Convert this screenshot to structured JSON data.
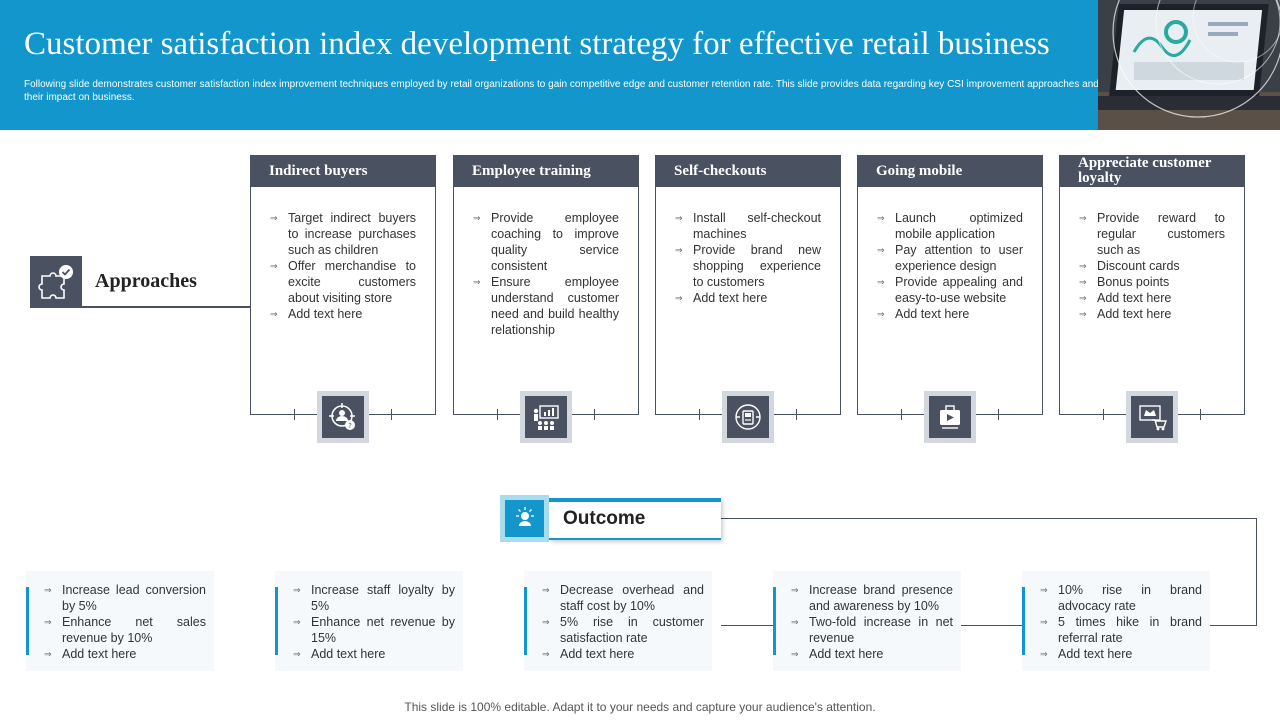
{
  "header": {
    "title": "Customer satisfaction index development strategy for effective retail business",
    "subtitle": "Following slide demonstrates customer satisfaction index improvement techniques employed by retail organizations to gain competitive edge and customer retention rate. This slide provides data regarding key CSI improvement approaches and their impact on business."
  },
  "approaches": {
    "label": "Approaches",
    "icon": "puzzle-check-icon"
  },
  "columns": [
    {
      "title": "Indirect buyers",
      "icon": "target-user-icon",
      "items": [
        "Target indirect buyers to increase purchases such as children",
        "Offer merchandise to excite customers about visiting store",
        "Add text here"
      ]
    },
    {
      "title": "Employee training",
      "icon": "presentation-training-icon",
      "items": [
        "Provide employee coaching to improve quality service consistent",
        "Ensure employee understand customer need and build healthy relationship"
      ]
    },
    {
      "title": "Self-checkouts",
      "icon": "checkout-machine-icon",
      "items": [
        "Install self-checkout machines",
        "Provide brand new shopping experience to customers",
        "Add text here"
      ]
    },
    {
      "title": "Going mobile",
      "icon": "mobile-video-icon",
      "items": [
        "Launch optimized mobile application",
        "Pay attention to user experience design",
        "Provide appealing and easy-to-use website",
        "Add text here"
      ]
    },
    {
      "title": "Appreciate customer loyalty",
      "icon": "crown-cart-icon",
      "items": [
        "Provide reward to regular customers such as",
        "Discount cards",
        "Bonus points",
        "Add text here",
        "Add text here"
      ]
    }
  ],
  "outcome": {
    "label": "Outcome",
    "icon": "bulb-person-icon",
    "cards": [
      [
        "Increase lead conversion by 5%",
        "Enhance net sales revenue  by 10%",
        "Add text here"
      ],
      [
        "Increase staff loyalty by 5%",
        "Enhance net revenue  by 15%",
        "Add text here"
      ],
      [
        "Decrease overhead  and staff cost by 10%",
        "5% rise in customer satisfaction rate",
        "Add text here"
      ],
      [
        "Increase brand presence and awareness by 10%",
        "Two-fold  increase in net revenue",
        "Add text here"
      ],
      [
        "10% rise in brand advocacy rate",
        "5 times hike in brand referral  rate",
        "Add text here"
      ]
    ]
  },
  "footer": "This slide is 100% editable. Adapt it to your needs and capture your audience's attention.",
  "colors": {
    "header_blue": "#1296cc",
    "slate": "#4a5161"
  }
}
